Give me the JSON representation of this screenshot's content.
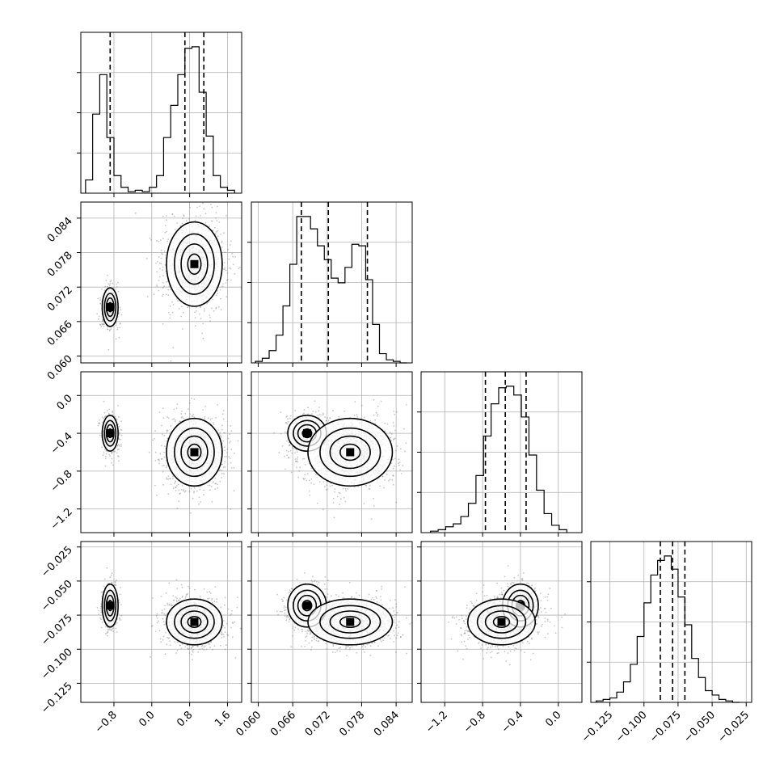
{
  "chart_data": {
    "type": "corner",
    "grid": true,
    "parameters": [
      {
        "range": [
          -1.5,
          1.9
        ],
        "ticks": [
          -0.8,
          0.0,
          0.8,
          1.6
        ],
        "tick_labels": [
          "−0.8",
          "0.0",
          "0.8",
          "1.6"
        ],
        "quantiles": [
          -0.88,
          0.7,
          1.1
        ],
        "hist_bins": [
          -1.4,
          -1.25,
          -1.1,
          -0.95,
          -0.8,
          -0.65,
          -0.5,
          -0.35,
          -0.2,
          -0.05,
          0.1,
          0.25,
          0.4,
          0.55,
          0.7,
          0.85,
          1.0,
          1.15,
          1.3,
          1.45,
          1.6,
          1.75
        ],
        "hist_counts": [
          0.09,
          0.54,
          0.81,
          0.38,
          0.12,
          0.04,
          0.01,
          0.02,
          0.01,
          0.04,
          0.12,
          0.38,
          0.6,
          0.81,
          0.99,
          1.0,
          0.69,
          0.39,
          0.12,
          0.04,
          0.02
        ]
      },
      {
        "range": [
          0.0588,
          0.0868
        ],
        "ticks": [
          0.06,
          0.066,
          0.072,
          0.078,
          0.084
        ],
        "tick_labels": [
          "0.060",
          "0.066",
          "0.072",
          "0.078",
          "0.084"
        ],
        "quantiles": [
          0.0675,
          0.0722,
          0.079
        ],
        "hist_bins": [
          0.0595,
          0.0607,
          0.0619,
          0.0631,
          0.0643,
          0.0655,
          0.0667,
          0.0679,
          0.0691,
          0.0703,
          0.0715,
          0.0727,
          0.0739,
          0.0751,
          0.0763,
          0.0775,
          0.0787,
          0.0799,
          0.0811,
          0.0823,
          0.0835,
          0.0847,
          0.0859
        ],
        "hist_counts": [
          0.01,
          0.03,
          0.08,
          0.18,
          0.37,
          0.64,
          0.95,
          0.95,
          0.87,
          0.76,
          0.67,
          0.55,
          0.52,
          0.62,
          0.77,
          0.76,
          0.54,
          0.25,
          0.06,
          0.02,
          0.01,
          0.0
        ]
      },
      {
        "range": [
          -1.45,
          0.25
        ],
        "ticks": [
          -1.2,
          -0.8,
          -0.4,
          0.0
        ],
        "tick_labels": [
          "−1.2",
          "−0.8",
          "−0.4",
          "0.0"
        ],
        "quantiles": [
          -0.77,
          -0.56,
          -0.34
        ],
        "hist_bins": [
          -1.35,
          -1.27,
          -1.19,
          -1.11,
          -1.03,
          -0.95,
          -0.87,
          -0.79,
          -0.71,
          -0.63,
          -0.55,
          -0.47,
          -0.39,
          -0.31,
          -0.23,
          -0.15,
          -0.07,
          0.01,
          0.09
        ],
        "hist_counts": [
          0.01,
          0.02,
          0.04,
          0.06,
          0.11,
          0.2,
          0.39,
          0.66,
          0.88,
          0.99,
          1.0,
          0.94,
          0.79,
          0.53,
          0.29,
          0.13,
          0.05,
          0.02
        ]
      },
      {
        "range": [
          -0.139,
          -0.021
        ],
        "ticks": [
          -0.125,
          -0.1,
          -0.075,
          -0.05,
          -0.025
        ],
        "tick_labels": [
          "−0.125",
          "−0.100",
          "−0.075",
          "−0.050",
          "−0.025"
        ],
        "quantiles": [
          -0.088,
          -0.079,
          -0.07
        ],
        "hist_bins": [
          -0.135,
          -0.13,
          -0.125,
          -0.12,
          -0.115,
          -0.11,
          -0.105,
          -0.1,
          -0.095,
          -0.09,
          -0.085,
          -0.08,
          -0.075,
          -0.07,
          -0.065,
          -0.06,
          -0.055,
          -0.05,
          -0.045,
          -0.04,
          -0.035,
          -0.03
        ],
        "hist_counts": [
          0.01,
          0.02,
          0.03,
          0.07,
          0.14,
          0.26,
          0.45,
          0.68,
          0.87,
          0.97,
          1.0,
          0.91,
          0.72,
          0.53,
          0.3,
          0.17,
          0.08,
          0.05,
          0.02,
          0.01,
          0.0
        ]
      }
    ],
    "scatter_color": "#808080",
    "density_color": "#000000"
  }
}
